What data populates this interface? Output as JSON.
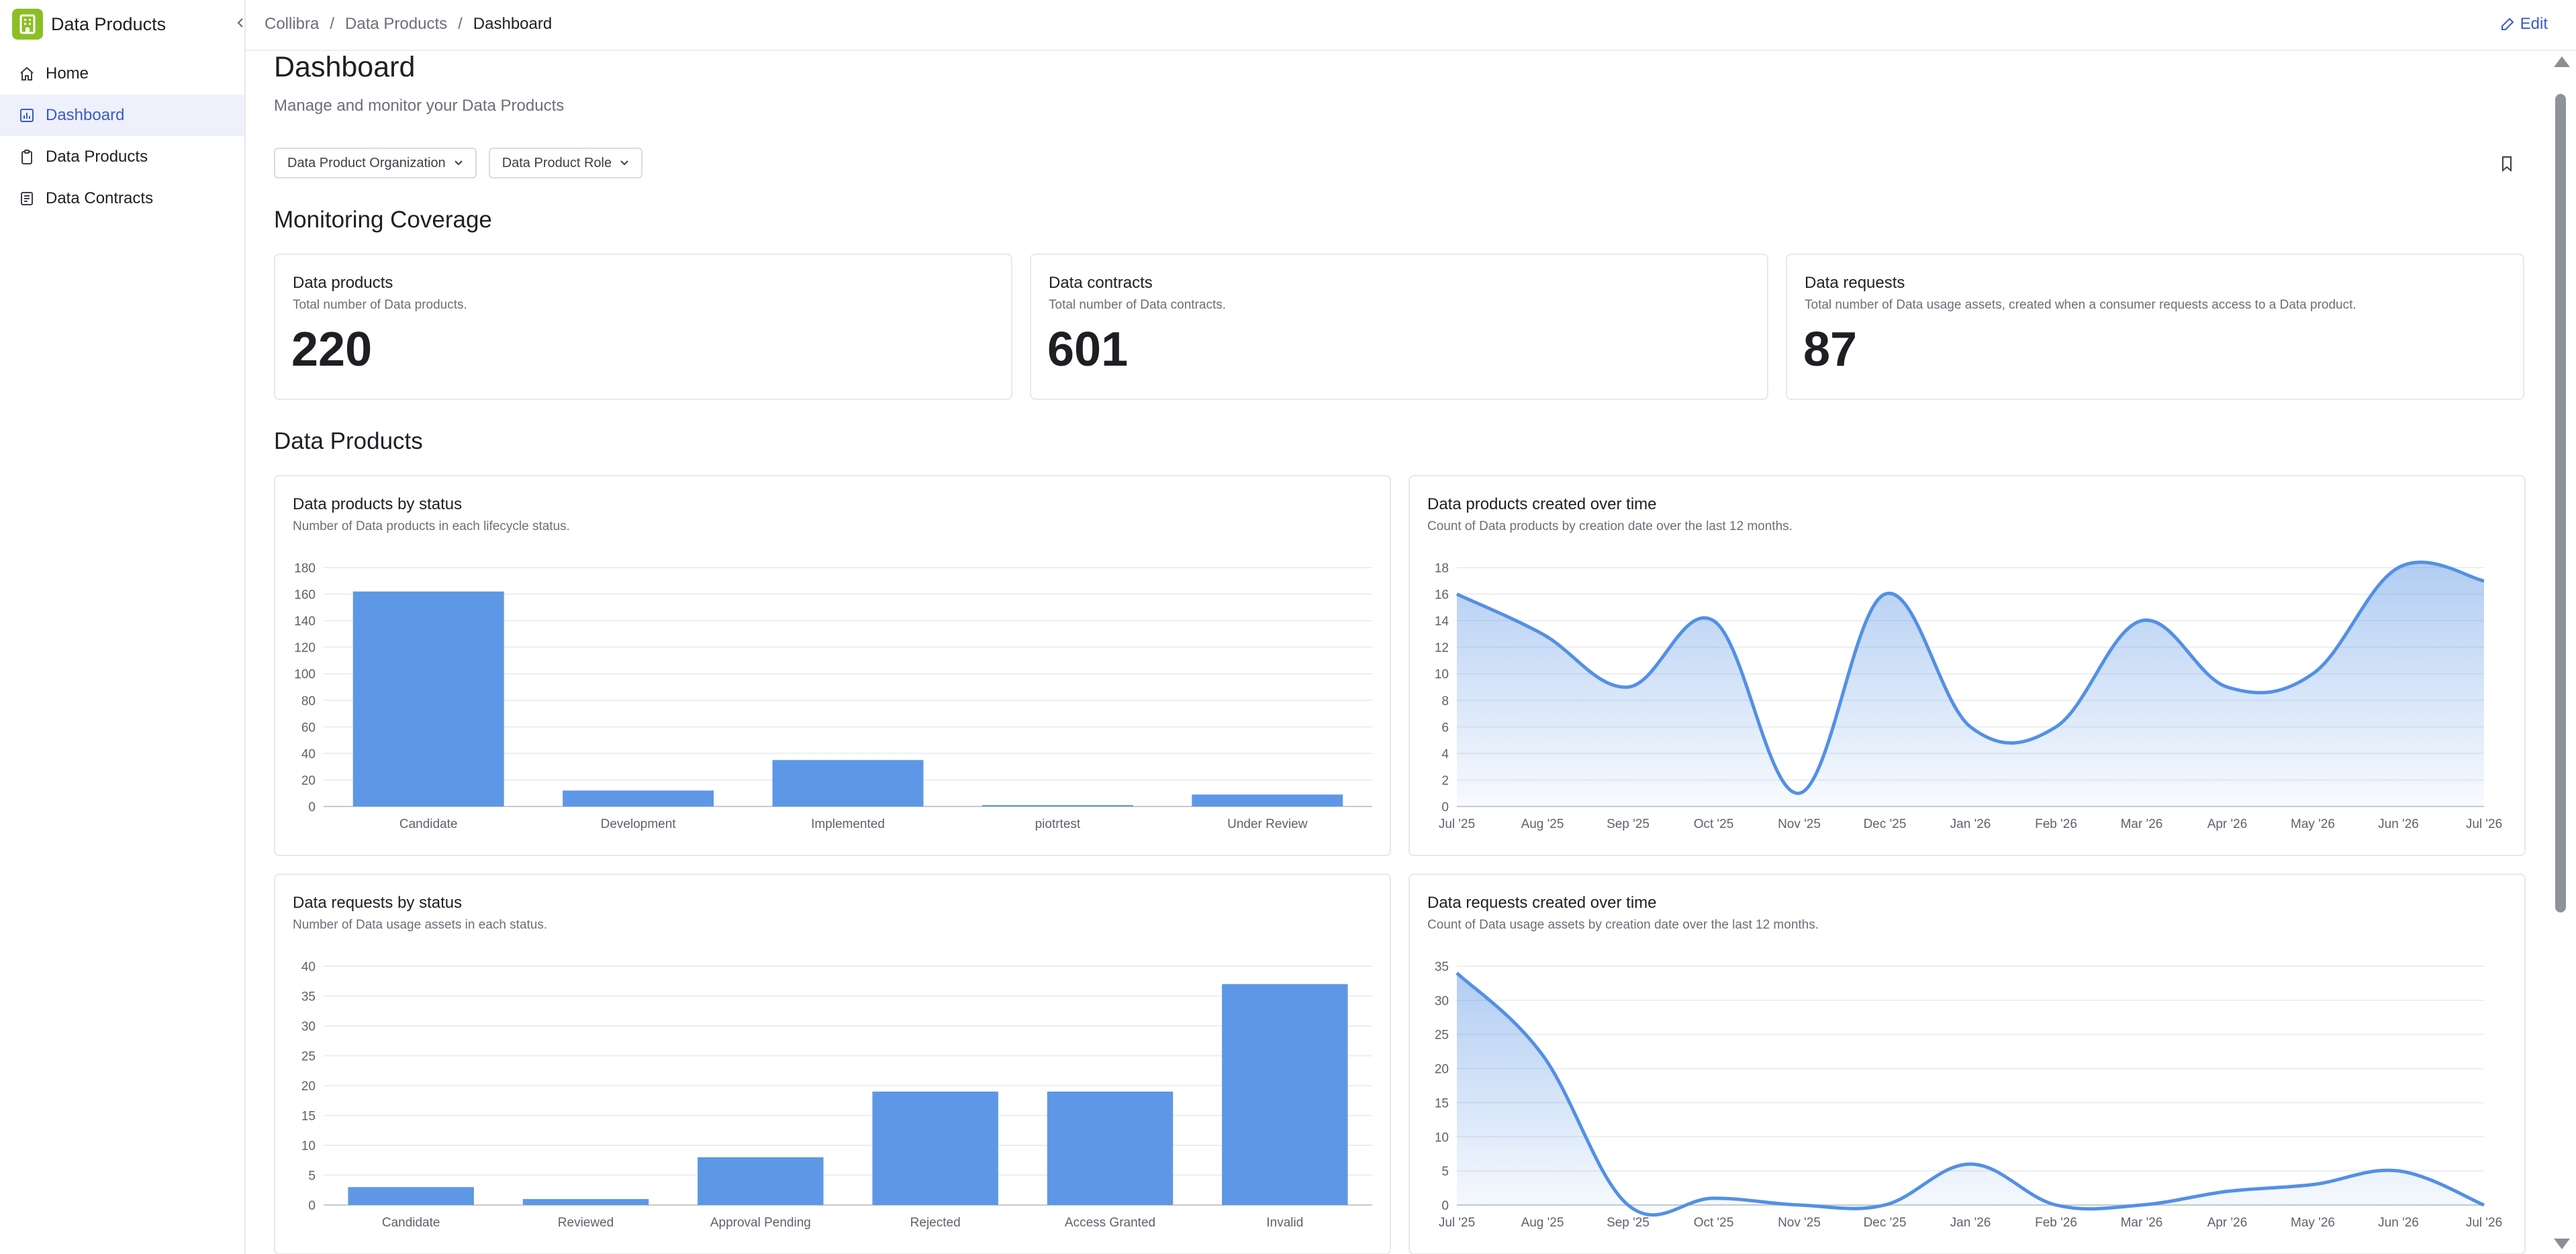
{
  "app": {
    "title": "Data Products"
  },
  "sidebar": {
    "items": [
      {
        "label": "Home",
        "icon": "home-icon",
        "active": false
      },
      {
        "label": "Dashboard",
        "icon": "chart-icon",
        "active": true
      },
      {
        "label": "Data Products",
        "icon": "clipboard-icon",
        "active": false
      },
      {
        "label": "Data Contracts",
        "icon": "document-icon",
        "active": false
      }
    ]
  },
  "breadcrumb": {
    "items": [
      "Collibra",
      "Data Products"
    ],
    "current": "Dashboard"
  },
  "header": {
    "edit_label": "Edit"
  },
  "page": {
    "title": "Dashboard",
    "subtitle": "Manage and monitor your Data Products"
  },
  "filters": {
    "organization": "Data Product Organization",
    "role": "Data Product Role"
  },
  "monitoring": {
    "title": "Monitoring Coverage",
    "cards": [
      {
        "title": "Data products",
        "desc": "Total number of Data products.",
        "value": "220"
      },
      {
        "title": "Data contracts",
        "desc": "Total number of Data contracts.",
        "value": "601"
      },
      {
        "title": "Data requests",
        "desc": "Total number of Data usage assets, created when a consumer requests access to a Data product.",
        "value": "87"
      }
    ]
  },
  "data_products_section": {
    "title": "Data Products"
  },
  "colors": {
    "accent": "#3b5ac6",
    "bar": "#5e97e6",
    "line": "#5390e4",
    "brand": "#8cbf26"
  },
  "chart_data": [
    {
      "type": "bar",
      "title": "Data products by status",
      "subtitle": "Number of Data products in each lifecycle status.",
      "categories": [
        "Candidate",
        "Development",
        "Implemented",
        "piotrtest",
        "Under Review"
      ],
      "values": [
        162,
        12,
        35,
        1,
        9
      ],
      "ylim": [
        0,
        180
      ],
      "yticks": [
        0,
        20,
        40,
        60,
        80,
        100,
        120,
        140,
        160,
        180
      ],
      "grid": true
    },
    {
      "type": "area",
      "title": "Data products created over time",
      "subtitle": "Count of Data products by creation date over the last 12 months.",
      "categories": [
        "Jul '25",
        "Aug '25",
        "Sep '25",
        "Oct '25",
        "Nov '25",
        "Dec '25",
        "Jan '26",
        "Feb '26",
        "Mar '26",
        "Apr '26",
        "May '26",
        "Jun '26",
        "Jul '26"
      ],
      "values": [
        16,
        13,
        9,
        14,
        1,
        16,
        6,
        6,
        14,
        9,
        10,
        18,
        17
      ],
      "ylim": [
        0,
        18
      ],
      "yticks": [
        0,
        2,
        4,
        6,
        8,
        10,
        12,
        14,
        16,
        18
      ],
      "grid": true
    },
    {
      "type": "bar",
      "title": "Data requests by status",
      "subtitle": "Number of Data usage assets in each status.",
      "categories": [
        "Candidate",
        "Reviewed",
        "Approval Pending",
        "Rejected",
        "Access Granted",
        "Invalid"
      ],
      "values": [
        3,
        1,
        8,
        19,
        19,
        37
      ],
      "ylim": [
        0,
        40
      ],
      "yticks": [
        0,
        5,
        10,
        15,
        20,
        25,
        30,
        35,
        40
      ],
      "grid": true
    },
    {
      "type": "area",
      "title": "Data requests created over time",
      "subtitle": "Count of Data usage assets by creation date over the last 12 months.",
      "categories": [
        "Jul '25",
        "Aug '25",
        "Sep '25",
        "Oct '25",
        "Nov '25",
        "Dec '25",
        "Jan '26",
        "Feb '26",
        "Mar '26",
        "Apr '26",
        "May '26",
        "Jun '26",
        "Jul '26"
      ],
      "values": [
        34,
        22,
        0,
        1,
        0,
        0,
        6,
        0,
        0,
        2,
        3,
        5,
        0
      ],
      "ylim": [
        0,
        35
      ],
      "yticks": [
        0,
        5,
        10,
        15,
        20,
        25,
        30,
        35
      ],
      "grid": true
    }
  ]
}
